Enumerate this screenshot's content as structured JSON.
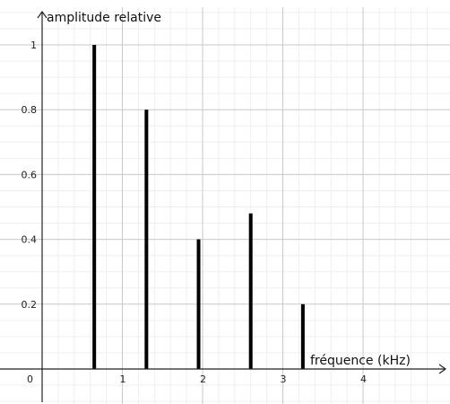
{
  "chart_data": {
    "type": "bar",
    "xlabel": "fréquence (kHz)",
    "ylabel": "amplitude relative",
    "origin_label": "0",
    "xlim": [
      -0.15,
      4.85
    ],
    "ylim": [
      -0.1,
      1.1
    ],
    "x_ticks": [
      {
        "value": 1,
        "label": "1"
      },
      {
        "value": 2,
        "label": "2"
      },
      {
        "value": 3,
        "label": "3"
      },
      {
        "value": 4,
        "label": "4"
      }
    ],
    "y_ticks": [
      {
        "value": 0.2,
        "label": "0.2"
      },
      {
        "value": 0.4,
        "label": "0.4"
      },
      {
        "value": 0.6,
        "label": "0.6"
      },
      {
        "value": 0.8,
        "label": "0.8"
      },
      {
        "value": 1,
        "label": "1"
      }
    ],
    "grid": true,
    "series": [
      {
        "x": [
          0.65,
          1.3,
          1.95,
          2.6,
          3.25
        ],
        "values": [
          1,
          0.8,
          0.4,
          0.48,
          0.2
        ]
      }
    ],
    "colors": {
      "bars": "#000000",
      "axes": "#222222",
      "grid": "#c8c8c8",
      "minor_grid": "#efefef"
    }
  }
}
